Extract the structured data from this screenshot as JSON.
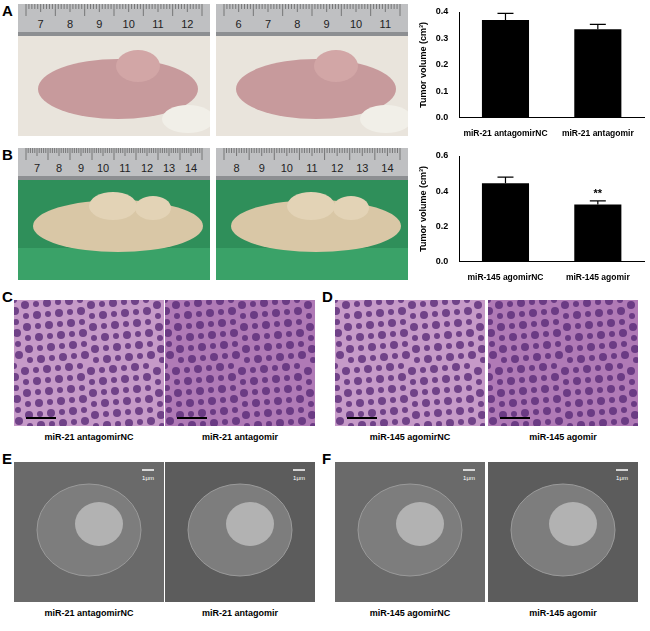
{
  "figure": {
    "photo_rows": [
      {
        "letter": "A",
        "rulers": [
          [
            7,
            8,
            9,
            10,
            11,
            12
          ],
          [
            6,
            7,
            8,
            9,
            10,
            11
          ]
        ]
      },
      {
        "letter": "B",
        "rulers": [
          [
            7,
            8,
            9,
            10,
            11,
            12,
            13,
            14
          ],
          [
            8,
            9,
            10,
            11,
            12,
            13,
            14
          ]
        ]
      }
    ],
    "image_rows": [
      {
        "letters": [
          "C",
          "D"
        ],
        "labels": [
          "miR-21 antagomirNC",
          "miR-21 antagomir",
          "miR-145 agomirNC",
          "miR-145 agomir"
        ]
      },
      {
        "letters": [
          "E",
          "F"
        ],
        "labels": [
          "miR-21 antagomirNC",
          "miR-21 antagomir",
          "miR-145 agomirNC",
          "miR-145 agomir"
        ],
        "scale_bar": "1μm"
      }
    ]
  },
  "chart_data": [
    {
      "type": "bar",
      "y_label": "Tumor volume (cm³)",
      "categories": [
        "miR-21 antagomirNC",
        "miR-21 antagomir"
      ],
      "values": [
        0.37,
        0.335
      ],
      "errors": [
        0.025,
        0.018
      ],
      "color": "#000000",
      "ylim": [
        0,
        0.4
      ],
      "yticks": [
        {
          "value": 0,
          "label": "0.0"
        },
        0.1,
        0.2,
        0.3,
        0.4
      ],
      "grid": false
    },
    {
      "type": "bar",
      "y_label": "Tumor volume (cm³)",
      "categories": [
        "miR-145 agomirNC",
        "miR-145 agomir"
      ],
      "values": [
        0.445,
        0.325
      ],
      "errors": [
        0.035,
        0.02
      ],
      "color": "#000000",
      "ylim": [
        0,
        0.6
      ],
      "yticks": [
        {
          "value": 0,
          "label": "0.0"
        },
        0.2,
        0.4,
        0.6
      ],
      "grid": false,
      "annotations": [
        {
          "category": "miR-145 agomir",
          "text": "**"
        }
      ]
    }
  ]
}
